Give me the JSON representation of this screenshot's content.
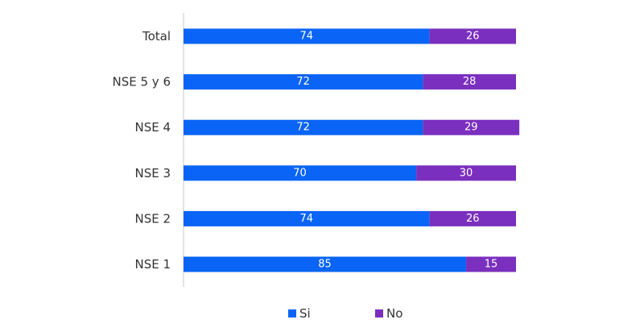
{
  "chart_data": {
    "type": "bar",
    "orientation": "horizontal",
    "stacked": true,
    "categories": [
      "Total",
      "NSE 5 y 6",
      "NSE 4",
      "NSE 3",
      "NSE 2",
      "NSE 1"
    ],
    "series": [
      {
        "name": "Si",
        "color": "#0a64f5",
        "values": [
          74,
          72,
          72,
          70,
          74,
          85
        ]
      },
      {
        "name": "No",
        "color": "#7b2fbe",
        "values": [
          26,
          28,
          29,
          30,
          26,
          15
        ]
      }
    ],
    "xlim": [
      0,
      100
    ],
    "grid": false,
    "legend": "bottom-center",
    "axis_color": "#c8c8c8"
  }
}
